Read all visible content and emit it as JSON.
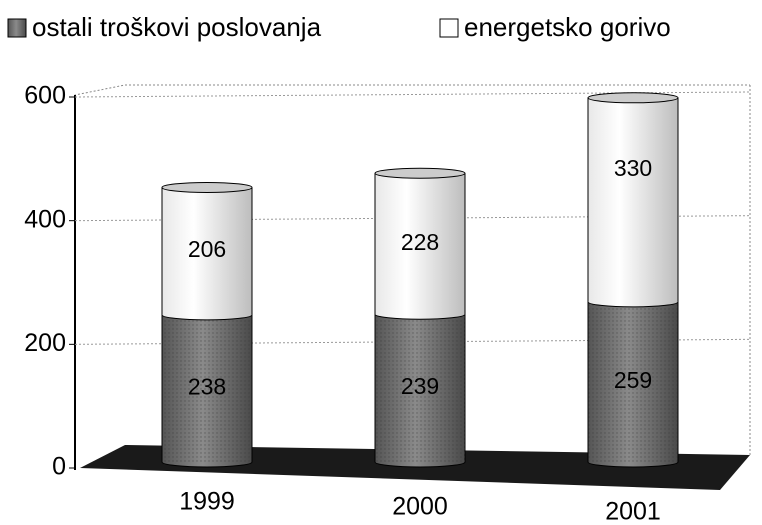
{
  "chart_data": {
    "type": "bar",
    "stacked": true,
    "categories": [
      "1999",
      "2000",
      "2001"
    ],
    "series": [
      {
        "name": "ostali troškovi poslovanja",
        "color": "#6e6e6e",
        "values": [
          238,
          239,
          259
        ]
      },
      {
        "name": "energetsko gorivo",
        "color": "#ffffff",
        "values": [
          206,
          228,
          330
        ]
      }
    ],
    "ylim": [
      0,
      600
    ],
    "yticks": [
      0,
      200,
      400,
      600
    ],
    "grid": true
  }
}
